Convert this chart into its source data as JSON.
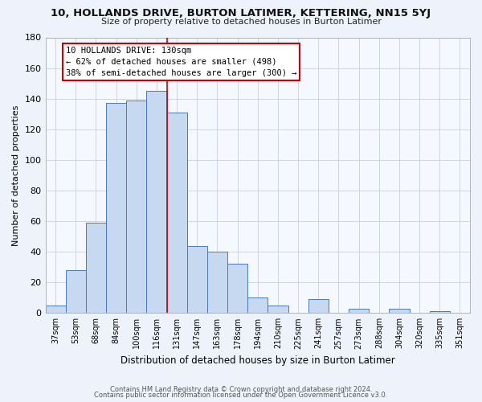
{
  "title": "10, HOLLANDS DRIVE, BURTON LATIMER, KETTERING, NN15 5YJ",
  "subtitle": "Size of property relative to detached houses in Burton Latimer",
  "xlabel": "Distribution of detached houses by size in Burton Latimer",
  "ylabel": "Number of detached properties",
  "bar_labels": [
    "37sqm",
    "53sqm",
    "68sqm",
    "84sqm",
    "100sqm",
    "116sqm",
    "131sqm",
    "147sqm",
    "163sqm",
    "178sqm",
    "194sqm",
    "210sqm",
    "225sqm",
    "241sqm",
    "257sqm",
    "273sqm",
    "288sqm",
    "304sqm",
    "320sqm",
    "335sqm",
    "351sqm"
  ],
  "bar_values": [
    5,
    28,
    59,
    137,
    139,
    145,
    131,
    44,
    40,
    32,
    10,
    5,
    0,
    9,
    0,
    3,
    0,
    3,
    0,
    1,
    0
  ],
  "bar_color": "#c6d9f0",
  "bar_edge_color": "#4a7aba",
  "ylim": [
    0,
    180
  ],
  "yticks": [
    0,
    20,
    40,
    60,
    80,
    100,
    120,
    140,
    160,
    180
  ],
  "vline_x": 5.5,
  "vline_color": "#cc0000",
  "annotation_title": "10 HOLLANDS DRIVE: 130sqm",
  "annotation_line1": "← 62% of detached houses are smaller (498)",
  "annotation_line2": "38% of semi-detached houses are larger (300) →",
  "footer_line1": "Contains HM Land Registry data © Crown copyright and database right 2024.",
  "footer_line2": "Contains public sector information licensed under the Open Government Licence v3.0.",
  "bg_color": "#eef3fb",
  "plot_bg_color": "#f5f8fe",
  "grid_color": "#c8d0dc"
}
